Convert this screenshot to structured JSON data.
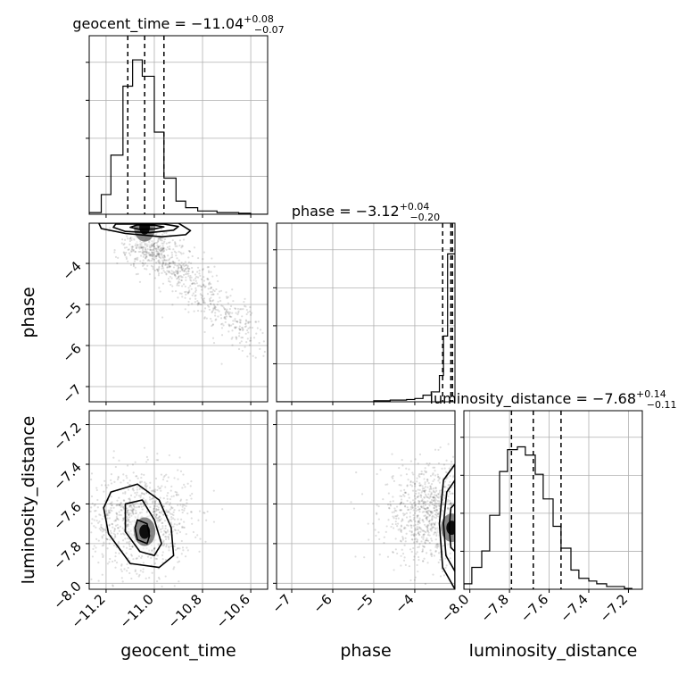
{
  "chart_data": {
    "type": "corner",
    "grid": true,
    "parameters": [
      "geocent_time",
      "phase",
      "luminosity_distance"
    ],
    "axis_labels": {
      "geocent_time": "geocent_time",
      "phase": "phase",
      "luminosity_distance": "luminosity_distance"
    },
    "ranges": {
      "geocent_time": [
        -11.27,
        -10.53
      ],
      "phase": [
        -7.37,
        -3.02
      ],
      "luminosity_distance": [
        -8.03,
        -7.13
      ]
    },
    "ticks": {
      "geocent_time": [
        {
          "value": -11.2,
          "label": "−11.2"
        },
        {
          "value": -11.0,
          "label": "−11.0"
        },
        {
          "value": -10.8,
          "label": "−10.8"
        },
        {
          "value": -10.6,
          "label": "−10.6"
        }
      ],
      "phase": [
        {
          "value": -7,
          "label": "−7"
        },
        {
          "value": -6,
          "label": "−6"
        },
        {
          "value": -5,
          "label": "−5"
        },
        {
          "value": -4,
          "label": "−4"
        }
      ],
      "luminosity_distance": [
        {
          "value": -8.0,
          "label": "−8.0"
        },
        {
          "value": -7.8,
          "label": "−7.8"
        },
        {
          "value": -7.6,
          "label": "−7.6"
        },
        {
          "value": -7.4,
          "label": "−7.4"
        },
        {
          "value": -7.2,
          "label": "−7.2"
        }
      ]
    },
    "diagonal": [
      {
        "parameter": "geocent_time",
        "title_main": "geocent_time = −11.04",
        "title_sup": "+0.08",
        "title_sub": "−0.07",
        "quantiles": [
          -11.11,
          -11.04,
          -10.96
        ],
        "hist_edges": [
          -11.27,
          -11.24,
          -11.22,
          -11.2,
          -11.18,
          -11.15,
          -11.13,
          -11.11,
          -11.09,
          -11.07,
          -11.05,
          -11.02,
          -11.0,
          -10.98,
          -10.96,
          -10.93,
          -10.91,
          -10.89,
          -10.87,
          -10.85,
          -10.82,
          -10.8,
          -10.78,
          -10.76,
          -10.74,
          -10.71,
          -10.69,
          -10.67,
          -10.65,
          -10.63,
          -10.6,
          -10.58,
          -10.56,
          -10.53
        ],
        "hist_counts": [
          0.5,
          0.5,
          6,
          6,
          18,
          18,
          39,
          39,
          47,
          47,
          42,
          42,
          25,
          25,
          11,
          11,
          4,
          4,
          2,
          2,
          1,
          1,
          1,
          1,
          0.5,
          0.5,
          0.5,
          0.5,
          0.3,
          0.3,
          0,
          0,
          0
        ],
        "hist_ymax": 50
      },
      {
        "parameter": "phase",
        "title_main": "phase = −3.12",
        "title_sup": "+0.04",
        "title_sub": "−0.20",
        "quantiles": [
          -3.32,
          -3.12,
          -3.08
        ],
        "hist_edges": [
          -7.37,
          -7.2,
          -7.0,
          -6.8,
          -6.6,
          -6.4,
          -6.2,
          -6.0,
          -5.8,
          -5.6,
          -5.4,
          -5.2,
          -5.0,
          -4.8,
          -4.6,
          -4.4,
          -4.2,
          -4.0,
          -3.8,
          -3.6,
          -3.4,
          -3.3,
          -3.2,
          -3.1,
          -3.02
        ],
        "hist_counts": [
          0,
          0,
          0,
          0,
          0,
          0,
          0,
          0,
          0,
          0,
          0,
          0,
          0.3,
          0.3,
          0.5,
          0.5,
          0.7,
          1,
          2,
          3,
          8,
          20,
          45,
          45
        ],
        "hist_ymax": 50
      },
      {
        "parameter": "luminosity_distance",
        "title_main": "luminosity_distance = −7.68",
        "title_sup": "+0.14",
        "title_sub": "−0.11",
        "quantiles": [
          -7.79,
          -7.68,
          -7.54
        ],
        "hist_edges": [
          -8.03,
          -7.99,
          -7.94,
          -7.9,
          -7.85,
          -7.81,
          -7.76,
          -7.72,
          -7.67,
          -7.63,
          -7.58,
          -7.54,
          -7.49,
          -7.45,
          -7.4,
          -7.36,
          -7.31,
          -7.27,
          -7.22,
          -7.18
        ],
        "hist_counts": [
          2,
          8,
          14,
          27,
          43,
          51,
          52,
          49,
          42,
          33,
          23,
          15,
          7,
          4,
          3,
          2,
          1,
          1,
          0.3
        ],
        "hist_ymax": 60
      }
    ],
    "pairs": [
      {
        "x": "geocent_time",
        "y": "phase",
        "mode": {
          "x": -11.04,
          "y": -3.12
        },
        "contours": [
          [
            [
              -11.07,
              -3.06
            ],
            [
              -11.0,
              -3.07
            ],
            [
              -10.96,
              -3.11
            ],
            [
              -11.0,
              -3.16
            ],
            [
              -11.06,
              -3.17
            ],
            [
              -11.1,
              -3.12
            ]
          ],
          [
            [
              -11.16,
              -3.04
            ],
            [
              -10.96,
              -3.04
            ],
            [
              -10.9,
              -3.1
            ],
            [
              -10.92,
              -3.19
            ],
            [
              -11.02,
              -3.25
            ],
            [
              -11.12,
              -3.22
            ],
            [
              -11.17,
              -3.12
            ]
          ],
          [
            [
              -11.23,
              -3.02
            ],
            [
              -10.9,
              -3.02
            ],
            [
              -10.85,
              -3.2
            ],
            [
              -10.87,
              -3.3
            ],
            [
              -10.97,
              -3.35
            ],
            [
              -11.12,
              -3.27
            ],
            [
              -11.22,
              -3.15
            ]
          ]
        ],
        "scatter_trend": [
          [
            -11.05,
            -3.4
          ],
          [
            -10.95,
            -3.9
          ],
          [
            -10.85,
            -4.5
          ],
          [
            -10.7,
            -5.2
          ],
          [
            -10.6,
            -5.9
          ]
        ]
      },
      {
        "x": "geocent_time",
        "y": "luminosity_distance",
        "mode": {
          "x": -11.04,
          "y": -7.74
        },
        "contours": [
          [
            [
              -11.07,
              -7.68
            ],
            [
              -11.03,
              -7.7
            ],
            [
              -11.02,
              -7.76
            ],
            [
              -11.03,
              -7.8
            ],
            [
              -11.07,
              -7.78
            ],
            [
              -11.08,
              -7.72
            ]
          ],
          [
            [
              -11.12,
              -7.6
            ],
            [
              -11.05,
              -7.58
            ],
            [
              -11.0,
              -7.68
            ],
            [
              -10.97,
              -7.8
            ],
            [
              -11.0,
              -7.86
            ],
            [
              -11.06,
              -7.84
            ],
            [
              -11.12,
              -7.74
            ]
          ],
          [
            [
              -11.18,
              -7.54
            ],
            [
              -11.07,
              -7.5
            ],
            [
              -10.98,
              -7.58
            ],
            [
              -10.93,
              -7.72
            ],
            [
              -10.92,
              -7.86
            ],
            [
              -10.98,
              -7.92
            ],
            [
              -11.1,
              -7.9
            ],
            [
              -11.19,
              -7.75
            ],
            [
              -11.21,
              -7.62
            ]
          ]
        ],
        "scatter_center": [
          -11.05,
          -7.68
        ]
      },
      {
        "x": "phase",
        "y": "luminosity_distance",
        "mode": {
          "x": -3.1,
          "y": -7.72
        },
        "contours": [
          [
            [
              -3.02,
              -7.6
            ],
            [
              -3.12,
              -7.62
            ],
            [
              -3.16,
              -7.72
            ],
            [
              -3.12,
              -7.82
            ],
            [
              -3.02,
              -7.84
            ]
          ],
          [
            [
              -3.02,
              -7.48
            ],
            [
              -3.22,
              -7.54
            ],
            [
              -3.3,
              -7.7
            ],
            [
              -3.24,
              -7.86
            ],
            [
              -3.02,
              -7.94
            ]
          ],
          [
            [
              -3.02,
              -7.4
            ],
            [
              -3.3,
              -7.48
            ],
            [
              -3.4,
              -7.7
            ],
            [
              -3.32,
              -7.92
            ],
            [
              -3.02,
              -8.03
            ]
          ]
        ],
        "scatter_center": [
          -3.6,
          -7.65
        ]
      }
    ]
  }
}
